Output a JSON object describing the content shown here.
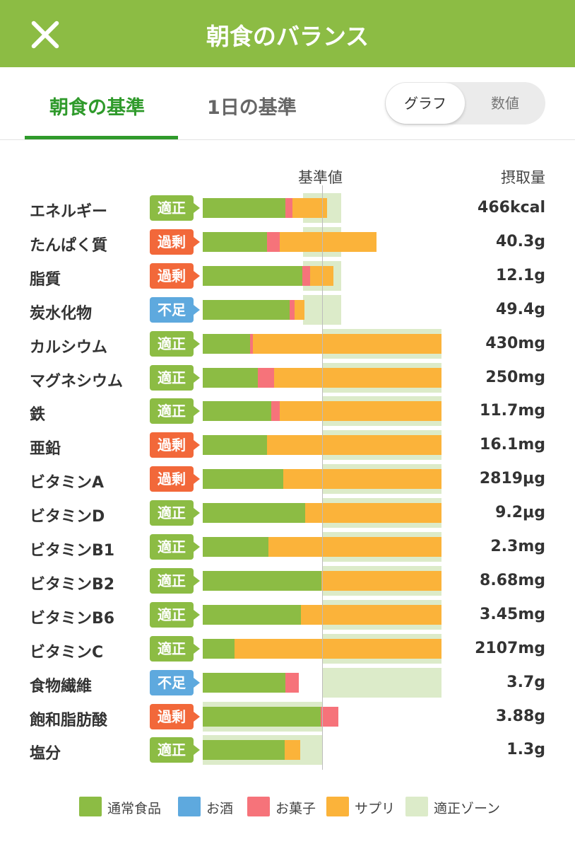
{
  "header": {
    "title": "朝食のバランス",
    "close_icon": "close-icon"
  },
  "tabs": [
    {
      "label": "朝食の基準",
      "active": true
    },
    {
      "label": "1日の基準",
      "active": false
    }
  ],
  "view_toggle": {
    "options": [
      "グラフ",
      "数値"
    ],
    "selected": "グラフ"
  },
  "columns": {
    "base": "基準値",
    "intake": "摂取量"
  },
  "colors": {
    "food": "#8cbc44",
    "alcohol": "#5ea9de",
    "snack": "#f6737a",
    "supplement": "#fbb33a",
    "zone": "#dcebc9",
    "status_ok": "#8cbc44",
    "status_over": "#f2683a",
    "status_under": "#5ea9de"
  },
  "status_labels": {
    "ok": "適正",
    "over": "過剰",
    "under": "不足"
  },
  "nutrients": [
    {
      "name": "エネルギー",
      "status": "ok",
      "intake": "466kcal",
      "food": 117,
      "snack": 10,
      "supplement": 49,
      "zone": [
        0.84,
        1.16
      ]
    },
    {
      "name": "たんぱく質",
      "status": "over",
      "intake": "40.3g",
      "food": 91,
      "snack": 18,
      "supplement": 137,
      "zone": [
        0.84,
        1.16
      ]
    },
    {
      "name": "脂質",
      "status": "over",
      "intake": "12.1g",
      "food": 141,
      "snack": 11,
      "supplement": 33,
      "zone": [
        0.84,
        1.16
      ]
    },
    {
      "name": "炭水化物",
      "status": "under",
      "intake": "49.4g",
      "food": 123,
      "snack": 7,
      "supplement": 14,
      "zone": [
        0.84,
        1.16
      ]
    },
    {
      "name": "カルシウム",
      "status": "ok",
      "intake": "430mg",
      "food": 67,
      "snack": 4,
      "supplement": 267,
      "zone": [
        1.0,
        2.0
      ]
    },
    {
      "name": "マグネシウム",
      "status": "ok",
      "intake": "250mg",
      "food": 78,
      "snack": 23,
      "supplement": 237,
      "zone": [
        1.0,
        2.0
      ]
    },
    {
      "name": "鉄",
      "status": "ok",
      "intake": "11.7mg",
      "food": 97,
      "snack": 12,
      "supplement": 229,
      "zone": [
        1.0,
        2.0
      ]
    },
    {
      "name": "亜鉛",
      "status": "over",
      "intake": "16.1mg",
      "food": 91,
      "snack": 0,
      "supplement": 247,
      "zone": [
        1.0,
        2.0
      ]
    },
    {
      "name": "ビタミンA",
      "status": "over",
      "intake": "2819μg",
      "food": 114,
      "snack": 0,
      "supplement": 224,
      "zone": [
        1.0,
        2.0
      ]
    },
    {
      "name": "ビタミンD",
      "status": "ok",
      "intake": "9.2μg",
      "food": 145,
      "snack": 0,
      "supplement": 193,
      "zone": [
        1.0,
        2.0
      ]
    },
    {
      "name": "ビタミンB1",
      "status": "ok",
      "intake": "2.3mg",
      "food": 93,
      "snack": 0,
      "supplement": 245,
      "zone": [
        1.0,
        2.0
      ]
    },
    {
      "name": "ビタミンB2",
      "status": "ok",
      "intake": "8.68mg",
      "food": 168,
      "snack": 0,
      "supplement": 170,
      "zone": [
        1.0,
        2.0
      ]
    },
    {
      "name": "ビタミンB6",
      "status": "ok",
      "intake": "3.45mg",
      "food": 139,
      "snack": 0,
      "supplement": 199,
      "zone": [
        1.0,
        2.0
      ]
    },
    {
      "name": "ビタミンC",
      "status": "ok",
      "intake": "2107mg",
      "food": 45,
      "snack": 0,
      "supplement": 293,
      "zone": [
        1.0,
        2.0
      ]
    },
    {
      "name": "食物繊維",
      "status": "under",
      "intake": "3.7g",
      "food": 117,
      "snack": 19,
      "supplement": 0,
      "zone": [
        1.0,
        2.0
      ]
    },
    {
      "name": "飽和脂肪酸",
      "status": "over",
      "intake": "3.88g",
      "food": 167,
      "snack": 25,
      "supplement": 0,
      "zone": [
        0.0,
        1.0
      ]
    },
    {
      "name": "塩分",
      "status": "ok",
      "intake": "1.3g",
      "food": 116,
      "snack": 0,
      "supplement": 22,
      "zone": [
        0.0,
        1.0
      ]
    }
  ],
  "legend": [
    {
      "label": "通常食品",
      "key": "food"
    },
    {
      "label": "お酒",
      "key": "alcohol"
    },
    {
      "label": "お菓子",
      "key": "snack"
    },
    {
      "label": "サプリ",
      "key": "supplement"
    },
    {
      "label": "適正ゾーン",
      "key": "zone"
    }
  ]
}
